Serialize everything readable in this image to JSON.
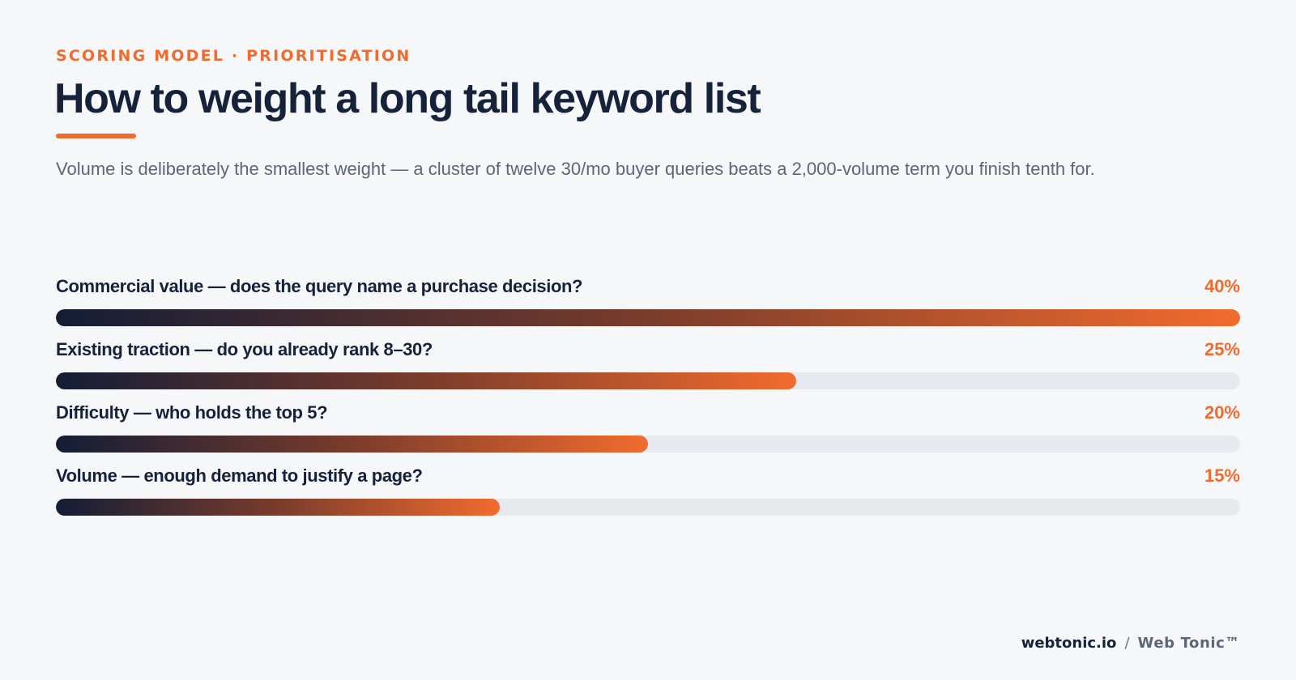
{
  "header": {
    "eyebrow": "SCORING MODEL · PRIORITISATION",
    "title": "How to weight a long tail keyword list",
    "subtitle": "Volume is deliberately the smallest weight — a cluster of twelve 30/mo buyer queries beats a 2,000-volume term you finish tenth for."
  },
  "colors": {
    "accent": "#f26b2e",
    "navy": "#16213a",
    "track": "#e7e9ee",
    "background": "#f6f7f9"
  },
  "chart_data": {
    "type": "bar",
    "orientation": "horizontal",
    "categories": [
      "Commercial value — does the query name a purchase decision?",
      "Existing traction — do you already rank 8–30?",
      "Difficulty — who holds the top 5?",
      "Volume — enough demand to justify a page?"
    ],
    "values": [
      40,
      25,
      20,
      15
    ],
    "value_labels": [
      "40%",
      "25%",
      "20%",
      "15%"
    ],
    "xlim": [
      0,
      40
    ],
    "grid": false,
    "legend": "none"
  },
  "footer": {
    "domain": "webtonic.io",
    "separator": "/",
    "brand": "Web Tonic™"
  }
}
